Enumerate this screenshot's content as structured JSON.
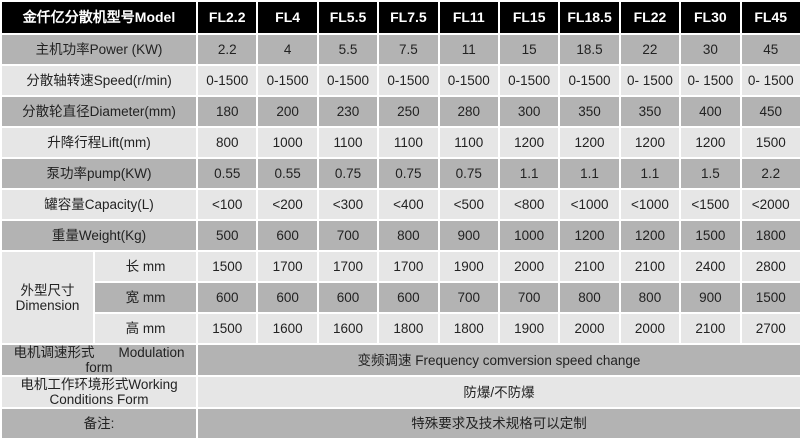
{
  "header": {
    "label": "金仟亿分散机型号Model",
    "models": [
      "FL2.2",
      "FL4",
      "FL5.5",
      "FL7.5",
      "FL11",
      "FL15",
      "FL18.5",
      "FL22",
      "FL30",
      "FL45"
    ]
  },
  "rows": [
    {
      "label": "主机功率Power (KW)",
      "values": [
        "2.2",
        "4",
        "5.5",
        "7.5",
        "11",
        "15",
        "18.5",
        "22",
        "30",
        "45"
      ]
    },
    {
      "label": "分散轴转速Speed(r/min)",
      "values": [
        "0-1500",
        "0-1500",
        "0-1500",
        "0-1500",
        "0-1500",
        "0-1500",
        "0-1500",
        "0- 1500",
        "0- 1500",
        "0- 1500"
      ]
    },
    {
      "label": "分散轮直径Diameter(mm)",
      "values": [
        "180",
        "200",
        "230",
        "250",
        "280",
        "300",
        "350",
        "350",
        "400",
        "450"
      ]
    },
    {
      "label": "升降行程Lift(mm)",
      "values": [
        "800",
        "1000",
        "1100",
        "1100",
        "1100",
        "1200",
        "1200",
        "1200",
        "1200",
        "1500"
      ]
    },
    {
      "label": "泵功率pump(KW)",
      "values": [
        "0.55",
        "0.55",
        "0.75",
        "0.75",
        "0.75",
        "1.1",
        "1.1",
        "1.1",
        "1.5",
        "2.2"
      ]
    },
    {
      "label": "罐容量Capacity(L)",
      "values": [
        "<100",
        "<200",
        "<300",
        "<400",
        "<500",
        "<800",
        "<1000",
        "<1000",
        "<1500",
        "<2000"
      ]
    },
    {
      "label": "重量Weight(Kg)",
      "values": [
        "500",
        "600",
        "700",
        "800",
        "900",
        "1000",
        "1200",
        "1200",
        "1500",
        "1800"
      ]
    }
  ],
  "dimension": {
    "label_cn": "外型尺寸",
    "label_en": "Dimension",
    "rows": [
      {
        "label": "长 mm",
        "values": [
          "1500",
          "1700",
          "1700",
          "1700",
          "1900",
          "2000",
          "2100",
          "2100",
          "2400",
          "2800"
        ]
      },
      {
        "label": "宽 mm",
        "values": [
          "600",
          "600",
          "600",
          "600",
          "700",
          "700",
          "800",
          "800",
          "900",
          "1500"
        ]
      },
      {
        "label": "高 mm",
        "values": [
          "1500",
          "1600",
          "1600",
          "1800",
          "1800",
          "1900",
          "2000",
          "2000",
          "2100",
          "2700"
        ]
      }
    ]
  },
  "modulation": {
    "label_cn": "电机调速形式",
    "label_en": "Modulation form",
    "value": "变频调速 Frequency comversion speed change"
  },
  "working": {
    "label_1": "电机工作环境形式Working",
    "label_2": "Conditions Form",
    "value": "防爆/不防爆"
  },
  "remark": {
    "label": "备注:",
    "value": "特殊要求及技术规格可以定制"
  }
}
